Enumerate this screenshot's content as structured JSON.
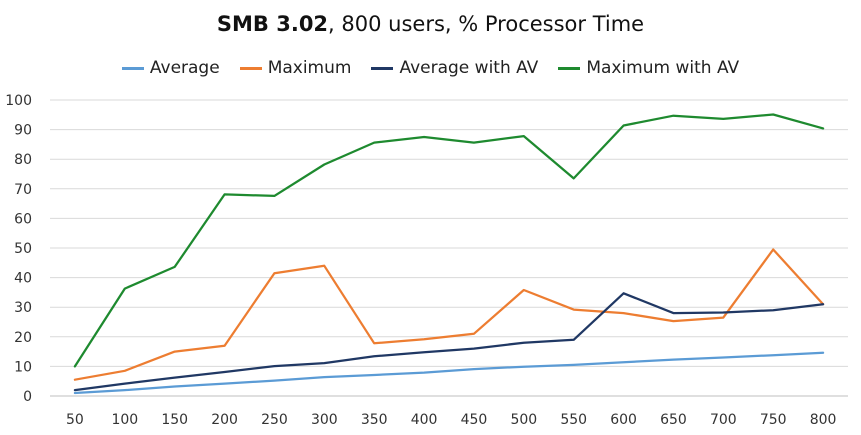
{
  "chart_data": {
    "type": "line",
    "title_bold": "SMB 3.02",
    "title_rest": ", 800 users, % Processor Time",
    "x": [
      50,
      100,
      150,
      200,
      250,
      300,
      350,
      400,
      450,
      500,
      550,
      600,
      650,
      700,
      750,
      800
    ],
    "ylim": [
      0,
      100
    ],
    "yticks": [
      0,
      10,
      20,
      30,
      40,
      50,
      60,
      70,
      80,
      90,
      100
    ],
    "grid": true,
    "legend_position": "top",
    "series": [
      {
        "name": "Average",
        "color": "#5B9BD5",
        "values": [
          1,
          2,
          3.2,
          4.2,
          5.2,
          6.4,
          7.1,
          7.9,
          9.1,
          9.9,
          10.5,
          11.4,
          12.3,
          13,
          13.8,
          14.6
        ]
      },
      {
        "name": "Maximum",
        "color": "#ED7D31",
        "values": [
          5.5,
          8.5,
          15,
          17,
          41.5,
          44,
          17.8,
          19.2,
          21,
          35.8,
          29.2,
          28,
          25.3,
          26.5,
          49.5,
          31
        ]
      },
      {
        "name": "Average with AV",
        "color": "#203864",
        "values": [
          2,
          4.2,
          6.2,
          8.1,
          10.1,
          11.1,
          13.4,
          14.8,
          16,
          18,
          19,
          34.7,
          28,
          28.2,
          29,
          31
        ]
      },
      {
        "name": "Maximum with AV",
        "color": "#1E8A2F",
        "values": [
          10,
          36.3,
          43.6,
          68.1,
          67.6,
          78.2,
          85.6,
          87.5,
          85.6,
          87.8,
          73.5,
          91.4,
          94.7,
          93.6,
          95.1,
          90.4
        ]
      }
    ]
  }
}
